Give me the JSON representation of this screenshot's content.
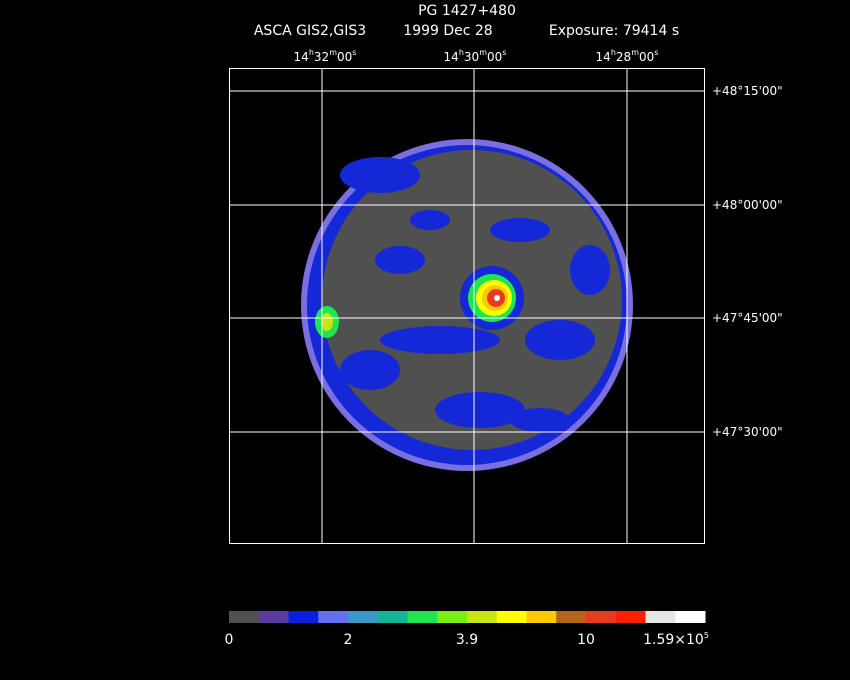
{
  "title": "PG 1427+480",
  "subtitle": {
    "instrument": "ASCA GIS2,GIS3",
    "date": "1999 Dec 28",
    "exposure": "Exposure: 79414 s"
  },
  "ra_labels": [
    [
      "14",
      "h",
      "32",
      "m",
      "00",
      "s"
    ],
    [
      "14",
      "h",
      "30",
      "m",
      "00",
      "s"
    ],
    [
      "14",
      "h",
      "28",
      "m",
      "00",
      "s"
    ]
  ],
  "dec_labels": [
    "+48°15'00\"",
    "+48°00'00\"",
    "+47°45'00\"",
    "+47°30'00\""
  ],
  "colorbar": {
    "colors": [
      "#505050",
      "#5a3ca0",
      "#0a1ee0",
      "#6470f0",
      "#3c96c8",
      "#14b496",
      "#1ee650",
      "#78f014",
      "#c8e614",
      "#ffff00",
      "#ffc800",
      "#b46414",
      "#e63c1e",
      "#ff1e00",
      "#e6e6e6",
      "#ffffff"
    ],
    "labels": [
      [
        "0"
      ],
      [
        "2"
      ],
      [
        "3.9"
      ],
      [
        "10"
      ],
      [
        "1.59×10",
        "5"
      ]
    ]
  }
}
